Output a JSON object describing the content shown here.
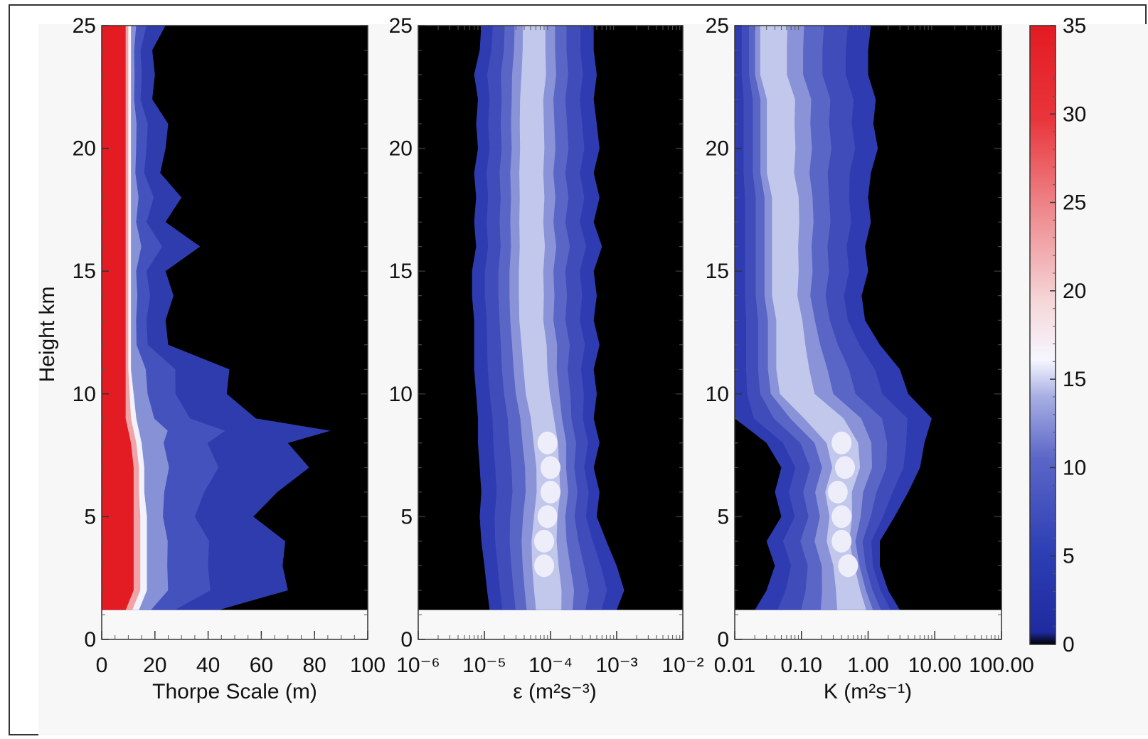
{
  "chart_data": [
    {
      "type": "heatmap",
      "xlabel": "Thorpe Scale  (m)",
      "ylabel": "Height km",
      "xscale": "linear",
      "xlim": [
        0,
        100
      ],
      "ylim": [
        0,
        25
      ],
      "xticks": [
        "0",
        "20",
        "40",
        "60",
        "80",
        "100"
      ],
      "yticks": [
        "0",
        "5",
        "10",
        "15",
        "20",
        "25"
      ],
      "data_ylim": [
        1.2,
        25
      ],
      "profile": {
        "heights": [
          1.2,
          2,
          3,
          4,
          5,
          6,
          7,
          8,
          8.5,
          9,
          10,
          11,
          12,
          13,
          14,
          15,
          16,
          17,
          18,
          19,
          20,
          21,
          22,
          23,
          24,
          25
        ],
        "red_core_edge": [
          9,
          12,
          12,
          12,
          12,
          12,
          12,
          11,
          10,
          9,
          9,
          9,
          9,
          9,
          9,
          9,
          9,
          9,
          9,
          9,
          9,
          9,
          9,
          9,
          9,
          9
        ],
        "white_edge": [
          14,
          17,
          17,
          17,
          17,
          16,
          16,
          15,
          14,
          13,
          12,
          11,
          11,
          11,
          11,
          11,
          11,
          11,
          11,
          11,
          11,
          11,
          11,
          11,
          11,
          11
        ],
        "outer_edge": [
          44,
          70,
          68,
          69,
          57,
          66,
          78,
          70,
          86,
          58,
          47,
          48,
          25,
          24,
          27,
          24,
          37,
          24,
          30,
          22,
          24,
          25,
          19,
          20,
          19,
          24
        ]
      }
    },
    {
      "type": "heatmap",
      "xlabel": "ε  (m²s⁻³)",
      "xscale": "log",
      "xlim": [
        1e-06,
        0.01
      ],
      "ylim": [
        0,
        25
      ],
      "xticks": [
        "10⁻⁶",
        "10⁻⁵",
        "10⁻⁴",
        "10⁻³",
        "10⁻²"
      ],
      "yticks": [
        "0",
        "5",
        "10",
        "15",
        "20",
        "25"
      ],
      "data_ylim": [
        1.2,
        25
      ],
      "profile": {
        "heights": [
          1.2,
          2,
          3,
          4,
          5,
          6,
          7,
          8,
          9,
          10,
          11,
          12,
          13,
          14,
          15,
          16,
          17,
          18,
          19,
          20,
          21,
          22,
          23,
          24,
          25
        ],
        "left_edge": [
          1.2e-05,
          1.1e-05,
          1e-05,
          9e-06,
          8.5e-06,
          9e-06,
          8.5e-06,
          8e-06,
          8e-06,
          7.5e-06,
          7e-06,
          7e-06,
          7e-06,
          6.5e-06,
          6.5e-06,
          7.5e-06,
          7e-06,
          7.5e-06,
          7e-06,
          8e-06,
          7.5e-06,
          8e-06,
          7e-06,
          8.5e-06,
          9e-06
        ],
        "right_edge": [
          0.001,
          0.0013,
          0.001,
          0.0007,
          0.0005,
          0.00055,
          0.00045,
          0.00055,
          0.00045,
          0.0005,
          0.00045,
          0.00055,
          0.00045,
          0.0005,
          0.00045,
          0.0006,
          0.00045,
          0.00055,
          0.00045,
          0.00055,
          0.0005,
          0.00045,
          0.0005,
          0.00045,
          0.00045
        ],
        "center": [
          9e-05,
          8.5e-05,
          8e-05,
          8e-05,
          9e-05,
          0.0001,
          0.0001,
          9e-05,
          8e-05,
          6.5e-05,
          6e-05,
          5.5e-05,
          5e-05,
          5e-05,
          5e-05,
          5e-05,
          5e-05,
          5e-05,
          5e-05,
          5e-05,
          5e-05,
          5e-05,
          5.5e-05,
          5.5e-05,
          5.5e-05
        ]
      }
    },
    {
      "type": "heatmap",
      "xlabel": "K  (m²s⁻¹)",
      "xscale": "log",
      "xlim": [
        0.01,
        100
      ],
      "ylim": [
        0,
        25
      ],
      "xticks": [
        "0.01",
        "0.10",
        "1.00",
        "10.00",
        "100.00"
      ],
      "yticks": [
        "0",
        "5",
        "10",
        "15",
        "20",
        "25"
      ],
      "data_ylim": [
        1.2,
        25
      ],
      "profile": {
        "heights": [
          1.2,
          2,
          3,
          4,
          5,
          6,
          7,
          8,
          9,
          10,
          11,
          12,
          13,
          14,
          15,
          16,
          17,
          18,
          19,
          20,
          21,
          22,
          23,
          24,
          25
        ],
        "left_edge": [
          0.02,
          0.03,
          0.04,
          0.03,
          0.05,
          0.04,
          0.05,
          0.03,
          0.01,
          0.01,
          0.01,
          0.01,
          0.01,
          0.01,
          0.01,
          0.01,
          0.01,
          0.01,
          0.01,
          0.01,
          0.01,
          0.01,
          0.01,
          0.01,
          0.01
        ],
        "right_edge": [
          3.0,
          2.0,
          1.5,
          1.5,
          2.5,
          4.0,
          6.0,
          7.0,
          9.0,
          4.0,
          3.0,
          1.5,
          0.9,
          0.8,
          1.0,
          0.9,
          1.1,
          1.0,
          1.1,
          1.4,
          1.2,
          1.3,
          1.0,
          1.0,
          1.1
        ],
        "center": [
          0.7,
          0.6,
          0.5,
          0.4,
          0.4,
          0.35,
          0.45,
          0.4,
          0.2,
          0.07,
          0.06,
          0.06,
          0.06,
          0.05,
          0.05,
          0.05,
          0.05,
          0.05,
          0.04,
          0.04,
          0.04,
          0.04,
          0.03,
          0.03,
          0.03
        ]
      }
    }
  ],
  "colorbar": {
    "ticks": [
      "0",
      "5",
      "10",
      "15",
      "20",
      "25",
      "30",
      "35"
    ],
    "range": [
      0,
      35
    ],
    "colors": {
      "low": "#000000",
      "mid_low": "#2e3fb0",
      "mid": "#7b86d4",
      "white": "#f4f4ff",
      "high": "#e8202a"
    }
  }
}
